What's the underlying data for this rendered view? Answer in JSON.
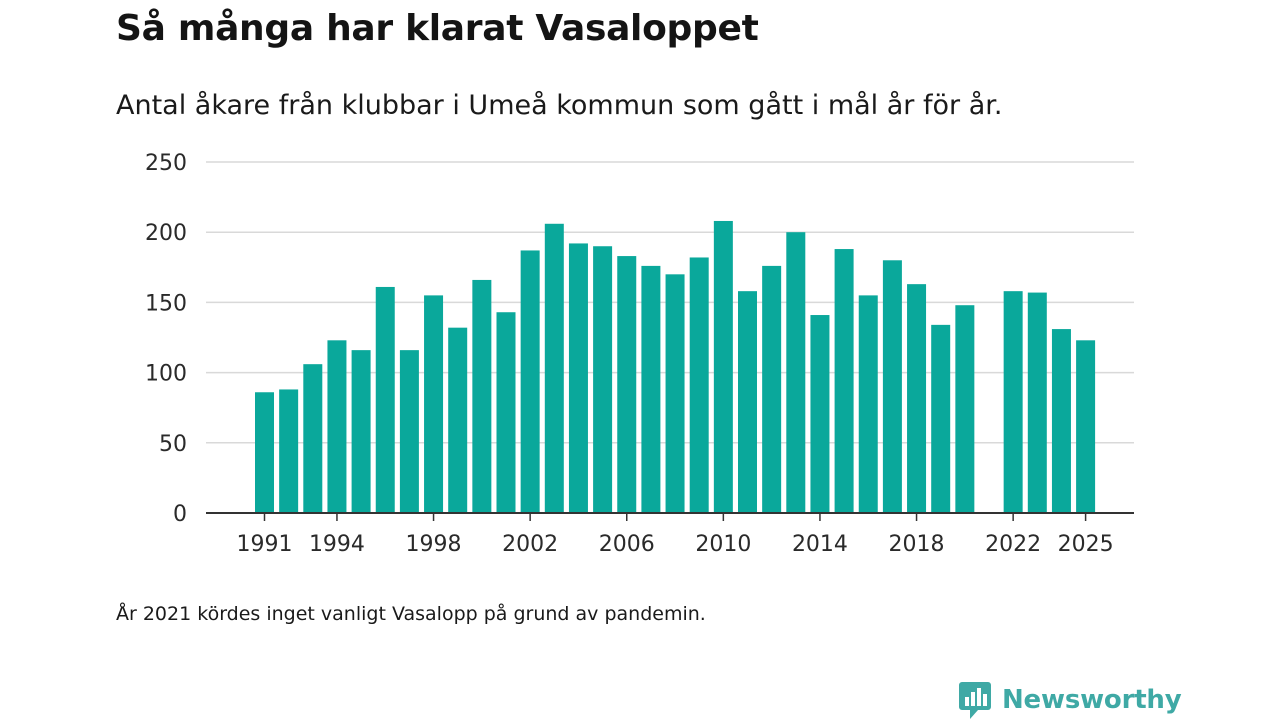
{
  "header": {
    "title": "Så många har klarat Vasaloppet",
    "subtitle": "Antal åkare från klubbar i Umeå kommun som gått i mål år för år."
  },
  "footer": {
    "note": "År 2021 kördes inget vanligt Vasalopp på grund av pandemin.",
    "brand": "Newsworthy"
  },
  "colors": {
    "bar": "#0aa89b",
    "grid": "#d9d9d9",
    "axis": "#333333",
    "brand": "#3fa9a5"
  },
  "chart_data": {
    "type": "bar",
    "title": "Så många har klarat Vasaloppet",
    "xlabel": "",
    "ylabel": "",
    "ylim": [
      0,
      250
    ],
    "yticks": [
      0,
      50,
      100,
      150,
      200,
      250
    ],
    "xticks": [
      1991,
      1994,
      1998,
      2002,
      2006,
      2010,
      2014,
      2018,
      2022,
      2025
    ],
    "x_range": [
      1988,
      2027
    ],
    "years": [
      1991,
      1992,
      1993,
      1994,
      1995,
      1996,
      1997,
      1998,
      1999,
      2000,
      2001,
      2002,
      2003,
      2004,
      2005,
      2006,
      2007,
      2008,
      2009,
      2010,
      2011,
      2012,
      2013,
      2014,
      2015,
      2016,
      2017,
      2018,
      2019,
      2020,
      2022,
      2023,
      2024,
      2025
    ],
    "values": [
      86,
      88,
      106,
      123,
      116,
      161,
      116,
      155,
      132,
      166,
      143,
      187,
      206,
      192,
      190,
      183,
      176,
      170,
      182,
      208,
      158,
      176,
      200,
      141,
      188,
      155,
      180,
      163,
      134,
      148,
      158,
      157,
      131,
      123
    ],
    "grid": true
  }
}
